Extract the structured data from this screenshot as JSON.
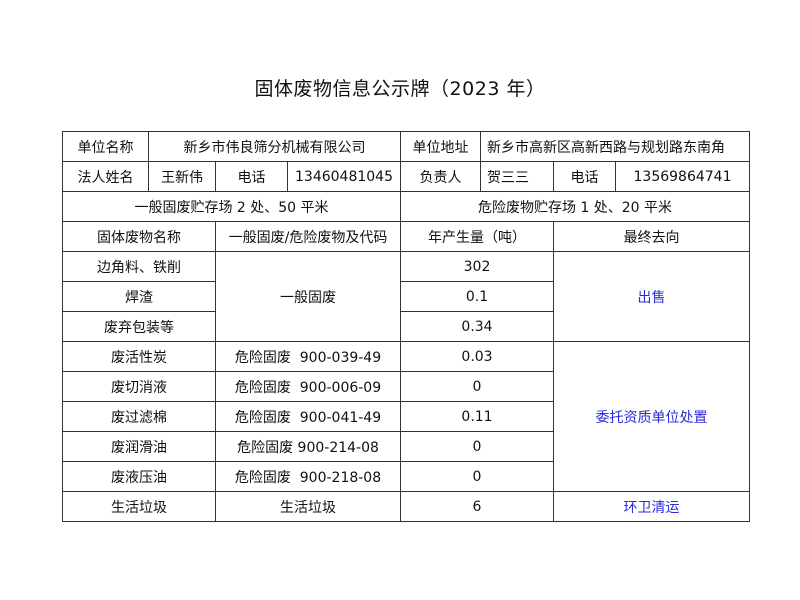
{
  "title": "固体废物信息公示牌（2023 年）",
  "info": {
    "company_label": "单位名称",
    "company": "新乡市伟良筛分机械有限公司",
    "address_label": "单位地址",
    "address": "新乡市高新区高新西路与规划路东南角",
    "legal_label": "法人姓名",
    "legal": "王新伟",
    "phone_label": "电话",
    "legal_phone": "13460481045",
    "manager_label": "负责人",
    "manager": "贺三三",
    "manager_phone": "13569864741",
    "general_storage": "一般固废贮存场 2 处、50 平米",
    "hazard_storage": "危险废物贮存场 1 处、20 平米"
  },
  "headers": [
    "固体废物名称",
    "一般固废/危险废物及代码",
    "年产生量（吨）",
    "最终去向"
  ],
  "general": {
    "category": "一般固废",
    "destination": "出售",
    "rows": [
      {
        "name": "边角料、铁削",
        "amount": "302"
      },
      {
        "name": "焊渣",
        "amount": "0.1"
      },
      {
        "name": "废弃包装等",
        "amount": "0.34"
      }
    ]
  },
  "hazard": {
    "destination": "委托资质单位处置",
    "rows": [
      {
        "name": "废活性炭",
        "code": "危险固废  900-039-49",
        "amount": "0.03"
      },
      {
        "name": "废切消液",
        "code": "危险固废  900-006-09",
        "amount": "0"
      },
      {
        "name": "废过滤棉",
        "code": "危险固废  900-041-49",
        "amount": "0.11"
      },
      {
        "name": "废润滑油",
        "code": "危险固废 900-214-08",
        "amount": "0"
      },
      {
        "name": "废液压油",
        "code": "危险固废  900-218-08",
        "amount": "0"
      }
    ]
  },
  "domestic": {
    "name": "生活垃圾",
    "category": "生活垃圾",
    "amount": "6",
    "destination": "环卫清运"
  },
  "colors": {
    "destination_text": "#2b2bd8",
    "border": "#333333"
  }
}
